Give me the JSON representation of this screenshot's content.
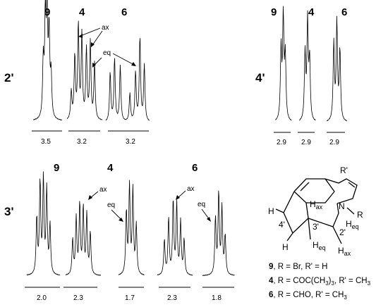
{
  "rows": [
    {
      "id": "2prime",
      "label": "2'",
      "spectra": [
        {
          "compound": "9",
          "scale": "3.5"
        },
        {
          "compound": "4",
          "scale": "3.2"
        },
        {
          "compound": "6",
          "scale": "3.2"
        }
      ]
    },
    {
      "id": "4prime",
      "label": "4'",
      "spectra": [
        {
          "compound": "9",
          "scale": "2.9"
        },
        {
          "compound": "4",
          "scale": "2.9"
        },
        {
          "compound": "6",
          "scale": "2.9"
        }
      ]
    },
    {
      "id": "3prime",
      "label": "3'",
      "spectra": [
        {
          "compound": "9",
          "scale": "2.0"
        },
        {
          "compound": "4",
          "scale": "2.3",
          "scale2": "1.7"
        },
        {
          "compound": "6",
          "scale": "2.3",
          "scale2": "1.8"
        }
      ]
    }
  ],
  "annotations": {
    "ax": "ax",
    "eq": "eq"
  },
  "structure": {
    "R_prime": "R'",
    "R": "R",
    "N": "N",
    "H": "H",
    "H_ax": "H",
    "H_eq": "H",
    "ax_sub": "ax",
    "eq_sub": "eq",
    "pos_4": "4'",
    "pos_3": "3'",
    "pos_2": "2'"
  },
  "legend": [
    {
      "num": "9",
      "text": ", R = Br, R' = H"
    },
    {
      "num": "4",
      "text": ", R = COC(CH",
      "sub": "3",
      "text2": ")",
      "sub2": "3",
      "text3": ", R' = CH",
      "sub3": "3"
    },
    {
      "num": "6",
      "text": ", R = CHO, R' = CH",
      "sub": "3"
    }
  ]
}
